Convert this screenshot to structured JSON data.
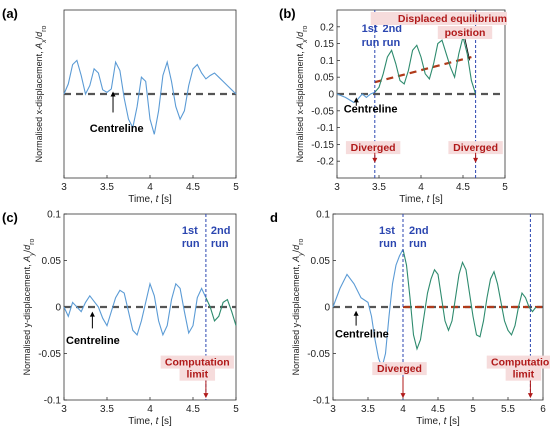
{
  "chart_data": [
    {
      "panel": "(a)",
      "type": "line",
      "xlabel": "Time, t [s]",
      "ylabel": "Normalised x-displacement, Ax/dro",
      "xlim": [
        3,
        5
      ],
      "ylim": [
        -0.1,
        0.1
      ],
      "xticks": [
        "3",
        "3.5",
        "4",
        "4.5",
        "5"
      ],
      "yticks": [],
      "series": [
        {
          "color": "#5b9bd5",
          "x": [
            3.0,
            3.05,
            3.1,
            3.15,
            3.2,
            3.25,
            3.3,
            3.35,
            3.4,
            3.45,
            3.5,
            3.55,
            3.6,
            3.65,
            3.7,
            3.75,
            3.8,
            3.85,
            3.9,
            3.95,
            4.0,
            4.05,
            4.1,
            4.15,
            4.2,
            4.25,
            4.3,
            4.35,
            4.4,
            4.45,
            4.5,
            4.55,
            4.6,
            4.65,
            4.7,
            4.75,
            4.8,
            4.85,
            4.9,
            4.95,
            5.0
          ],
          "y": [
            0.0,
            0.012,
            0.035,
            0.04,
            0.022,
            0.0,
            0.01,
            0.03,
            0.025,
            0.005,
            0.002,
            0.006,
            0.038,
            0.028,
            -0.005,
            -0.03,
            -0.04,
            -0.015,
            0.02,
            0.015,
            -0.03,
            -0.048,
            -0.02,
            0.022,
            0.038,
            0.015,
            -0.015,
            -0.03,
            -0.02,
            0.01,
            0.03,
            0.035,
            0.025,
            0.018,
            0.022,
            0.025,
            0.02,
            0.015,
            0.01,
            0.005,
            0.0
          ]
        }
      ],
      "reference_line": {
        "y": 0,
        "color": "#555555"
      },
      "annotations": [
        "Centreline"
      ]
    },
    {
      "panel": "(b)",
      "type": "line",
      "xlabel": "Time, t [s]",
      "ylabel": "Normalised x-displacement, Ax/dro",
      "xlim": [
        3,
        5
      ],
      "ylim": [
        -0.25,
        0.25
      ],
      "xticks": [
        "3",
        "3.5",
        "4",
        "4.5",
        "5"
      ],
      "yticks": [
        "-0.2",
        "-0.15",
        "-0.1",
        "-0.05",
        "0",
        "0.05",
        "0.1",
        "0.15",
        "0.2"
      ],
      "series": [
        {
          "color": "#5b9bd5",
          "x": [
            3.0,
            3.1,
            3.2,
            3.25,
            3.3,
            3.35,
            3.4,
            3.45
          ],
          "y": [
            0.0,
            -0.01,
            -0.025,
            -0.015,
            0.0,
            -0.01,
            0.0,
            0.005
          ]
        },
        {
          "color": "#2e8b6e",
          "x": [
            3.45,
            3.5,
            3.55,
            3.6,
            3.65,
            3.7,
            3.75,
            3.8,
            3.85,
            3.9,
            3.95,
            4.0,
            4.05,
            4.1,
            4.15,
            4.2,
            4.25,
            4.3,
            4.35,
            4.4,
            4.45,
            4.5,
            4.55,
            4.6,
            4.65
          ],
          "y": [
            0.005,
            0.02,
            0.06,
            0.11,
            0.13,
            0.09,
            0.04,
            0.03,
            0.07,
            0.13,
            0.145,
            0.11,
            0.06,
            0.045,
            0.09,
            0.15,
            0.16,
            0.12,
            0.08,
            0.05,
            0.12,
            0.17,
            0.12,
            0.04,
            0.0
          ]
        }
      ],
      "reference_line": {
        "y": 0,
        "color": "#555555"
      },
      "trend_line": {
        "x": [
          3.45,
          4.6
        ],
        "y": [
          0.035,
          0.11
        ],
        "color": "#b03a1a"
      },
      "annotations": [
        "1st run",
        "2nd run",
        "Displaced equilibrium position",
        "Centreline",
        "Diverged",
        "Diverged"
      ]
    },
    {
      "panel": "(c)",
      "type": "line",
      "xlabel": "Time, t [s]",
      "ylabel": "Normalised y-displacement, Ay/dro",
      "xlim": [
        3,
        5
      ],
      "ylim": [
        -0.1,
        0.1
      ],
      "xticks": [
        "3",
        "3.5",
        "4",
        "4.5",
        "5"
      ],
      "yticks": [
        "-0.1",
        "-0.05",
        "0",
        "0.05",
        "0.1"
      ],
      "series": [
        {
          "color": "#5b9bd5",
          "x": [
            3.0,
            3.05,
            3.1,
            3.15,
            3.2,
            3.25,
            3.3,
            3.35,
            3.4,
            3.45,
            3.5,
            3.55,
            3.6,
            3.65,
            3.7,
            3.75,
            3.8,
            3.85,
            3.9,
            3.95,
            4.0,
            4.05,
            4.1,
            4.15,
            4.2,
            4.25,
            4.3,
            4.35,
            4.4,
            4.45,
            4.5,
            4.55,
            4.6,
            4.65
          ],
          "y": [
            0.0,
            -0.01,
            0.005,
            0.0,
            -0.005,
            0.005,
            0.012,
            0.006,
            0.0,
            -0.012,
            -0.02,
            -0.005,
            0.01,
            0.018,
            0.015,
            -0.005,
            -0.025,
            -0.03,
            -0.015,
            0.005,
            0.025,
            0.012,
            -0.015,
            -0.03,
            -0.02,
            0.008,
            0.025,
            0.02,
            -0.005,
            -0.028,
            -0.02,
            0.01,
            0.02,
            0.01
          ]
        },
        {
          "color": "#2e8b6e",
          "x": [
            4.65,
            4.7,
            4.75,
            4.8,
            4.85,
            4.9,
            4.95,
            5.0
          ],
          "y": [
            0.01,
            0.0,
            -0.015,
            -0.01,
            0.005,
            0.008,
            -0.005,
            -0.02
          ]
        }
      ],
      "reference_line": {
        "y": 0,
        "color": "#555555"
      },
      "annotations": [
        "1st run",
        "2nd run",
        "Centreline",
        "Computation limit"
      ]
    },
    {
      "panel": "(d)",
      "type": "line",
      "xlabel": "Time, t [s]",
      "ylabel": "Normalised y-displacement, Ay/dro",
      "xlim": [
        3,
        6
      ],
      "ylim": [
        -0.1,
        0.1
      ],
      "xticks": [
        "3",
        "3.5",
        "4",
        "4.5",
        "5",
        "5.5",
        "6"
      ],
      "yticks": [
        "-0.1",
        "-0.05",
        "0",
        "0.05",
        "0.1"
      ],
      "series": [
        {
          "color": "#5b9bd5",
          "x": [
            3.0,
            3.1,
            3.2,
            3.3,
            3.4,
            3.5,
            3.55,
            3.6,
            3.65,
            3.7,
            3.75,
            3.8,
            3.85,
            3.9,
            3.95,
            4.0
          ],
          "y": [
            0.0,
            0.02,
            0.035,
            0.025,
            0.01,
            0.005,
            -0.01,
            -0.035,
            -0.055,
            -0.065,
            -0.05,
            -0.01,
            0.025,
            0.045,
            0.055,
            0.062
          ]
        },
        {
          "color": "#2e8b6e",
          "x": [
            4.0,
            4.05,
            4.1,
            4.15,
            4.2,
            4.25,
            4.3,
            4.35,
            4.4,
            4.45,
            4.5,
            4.55,
            4.6,
            4.65,
            4.7,
            4.75,
            4.8,
            4.85,
            4.9,
            4.95,
            5.0,
            5.05,
            5.1,
            5.15,
            5.2,
            5.25,
            5.3,
            5.35,
            5.4,
            5.45,
            5.5,
            5.55,
            5.6,
            5.65,
            5.7,
            5.75,
            5.8,
            5.85,
            5.9
          ],
          "y": [
            0.062,
            0.045,
            0.01,
            -0.03,
            -0.045,
            -0.035,
            -0.01,
            0.015,
            0.03,
            0.04,
            0.035,
            0.01,
            -0.015,
            -0.025,
            -0.015,
            0.01,
            0.035,
            0.048,
            0.04,
            0.015,
            -0.01,
            -0.03,
            -0.032,
            -0.015,
            0.01,
            0.03,
            0.038,
            0.025,
            0.005,
            -0.015,
            -0.025,
            -0.03,
            -0.02,
            0.0,
            0.015,
            0.01,
            0.0,
            -0.005,
            0.0
          ]
        }
      ],
      "reference_line": {
        "y": 0,
        "color": "#555555"
      },
      "trend_line": {
        "x": [
          4.0,
          6.0
        ],
        "y": [
          0,
          0
        ],
        "color": "#b03a1a"
      },
      "annotations": [
        "1st run",
        "2nd run",
        "Centreline",
        "Diverged",
        "Computation limit"
      ]
    }
  ],
  "labels": {
    "a": "(a)",
    "b": "(b)",
    "c": "(c)",
    "d": "d",
    "centreline": "Centreline",
    "run1": "1st",
    "run1b": "run",
    "run2": "2nd",
    "run2b": "run",
    "diverged": "Diverged",
    "displaced1": "Displaced equilibrium",
    "displaced2": "position",
    "complimit1": "Computation",
    "complimit2": "limit",
    "time_prefix": "Time, ",
    "time_var": "t",
    "time_suffix": " [s]",
    "ylab_x_prefix": "Normalised x-displacement, ",
    "ylab_y_prefix": "Normalised y-displacement, ",
    "A": "A",
    "subx": "x",
    "suby": "y",
    "slash": "/",
    "subro": "ro"
  }
}
